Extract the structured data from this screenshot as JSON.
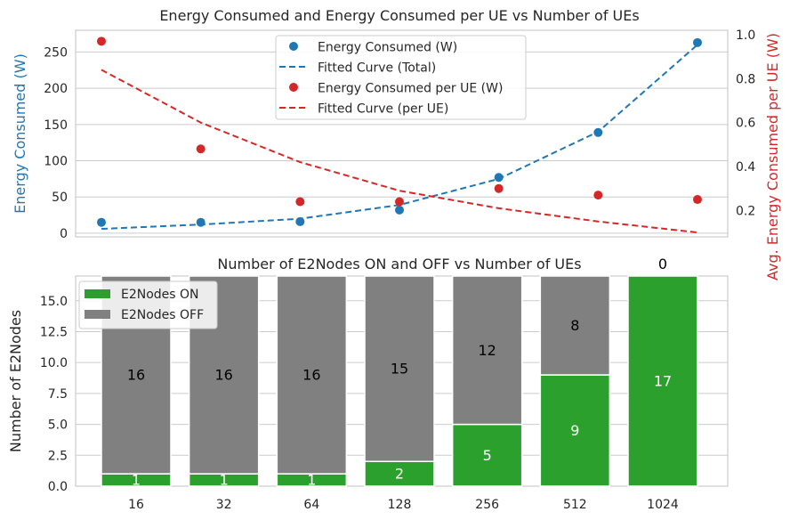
{
  "chart_data": [
    {
      "type": "line",
      "title": "Energy Consumed and Energy Consumed per UE vs Number of UEs",
      "categories": [
        "16",
        "32",
        "64",
        "128",
        "256",
        "512",
        "1024"
      ],
      "ylabel_left": "Energy Consumed (W)",
      "ylabel_right": "Avg. Energy Consumed per UE (W)",
      "ylim_left": [
        -5,
        280
      ],
      "ylim_right": [
        0.08,
        1.02
      ],
      "yticks_left": [
        0,
        50,
        100,
        150,
        200,
        250
      ],
      "yticks_right": [
        0.2,
        0.4,
        0.6,
        0.8,
        1.0
      ],
      "series": [
        {
          "name": "Energy Consumed (W)",
          "kind": "scatter",
          "axis": "left",
          "color": "#1f77b4",
          "values": [
            15,
            15,
            16,
            32,
            77,
            139,
            263
          ]
        },
        {
          "name": "Fitted Curve (Total)",
          "kind": "dashed-line",
          "axis": "left",
          "color": "#1f77b4",
          "values": [
            6,
            12,
            20,
            39,
            75,
            140,
            260
          ]
        },
        {
          "name": "Energy Consumed per UE (W)",
          "kind": "scatter",
          "axis": "right",
          "color": "#d62728",
          "values": [
            0.97,
            0.48,
            0.24,
            0.24,
            0.3,
            0.27,
            0.25
          ]
        },
        {
          "name": "Fitted Curve (per UE)",
          "kind": "dashed-line",
          "axis": "right",
          "color": "#d62728",
          "values": [
            0.84,
            0.6,
            0.42,
            0.29,
            0.21,
            0.15,
            0.1
          ]
        }
      ],
      "legend_position": "top-center"
    },
    {
      "type": "bar",
      "stacked": true,
      "title": "Number of E2Nodes ON and OFF vs Number of UEs",
      "categories": [
        "16",
        "32",
        "64",
        "128",
        "256",
        "512",
        "1024"
      ],
      "xlabel": "",
      "ylabel": "Number of E2Nodes",
      "ylim": [
        0,
        17
      ],
      "yticks": [
        "0.0",
        "2.5",
        "5.0",
        "7.5",
        "10.0",
        "12.5",
        "15.0"
      ],
      "series": [
        {
          "name": "E2Nodes ON",
          "color": "#2ca02c",
          "values": [
            1,
            1,
            1,
            2,
            5,
            9,
            17
          ]
        },
        {
          "name": "E2Nodes OFF",
          "color": "#808080",
          "values": [
            16,
            16,
            16,
            15,
            12,
            8,
            0
          ]
        }
      ],
      "legend_position": "top-left"
    }
  ]
}
